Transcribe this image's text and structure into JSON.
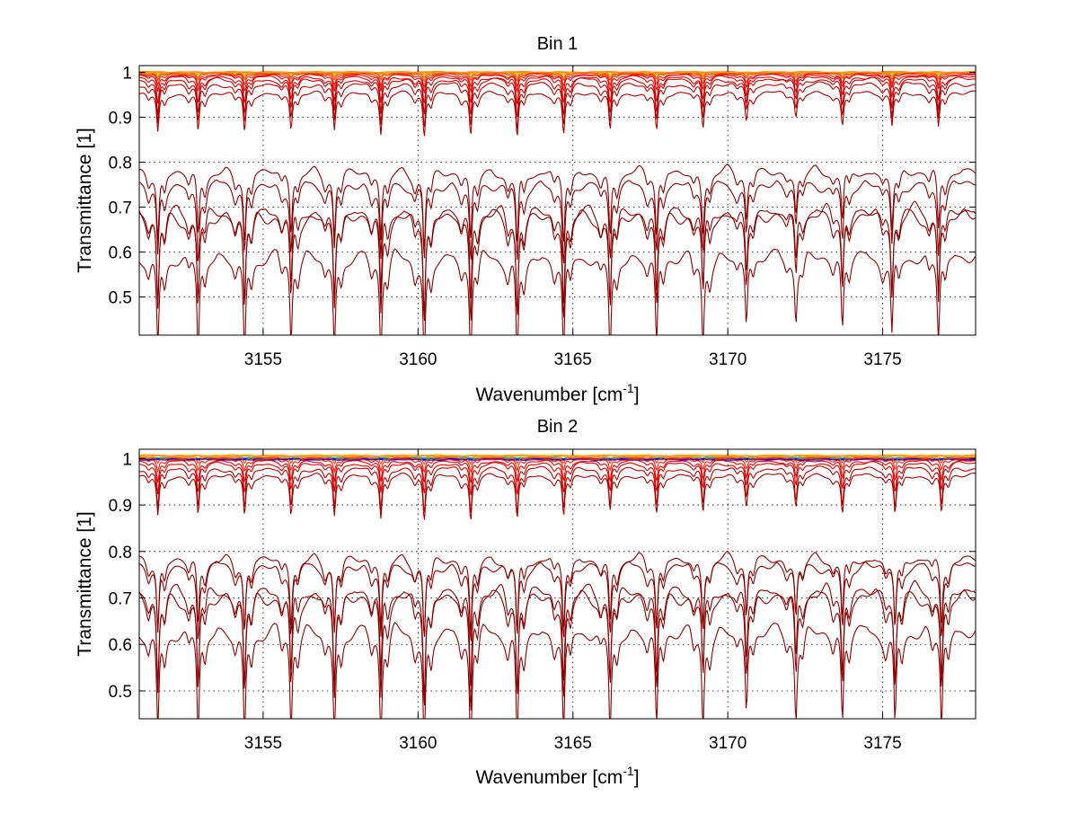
{
  "figure": {
    "background": "#ffffff"
  },
  "chart_data": [
    {
      "type": "line",
      "title": "Bin 1",
      "xlabel": "Wavenumber [cm",
      "xlabel_sup": "-1",
      "xlabel_end": "]",
      "ylabel": "Transmittance [1]",
      "xlim": [
        3151,
        3178
      ],
      "ylim": [
        0.415,
        1.015
      ],
      "xticks": [
        3155,
        3160,
        3165,
        3170,
        3175
      ],
      "xtick_labels": [
        "3155",
        "3160",
        "3165",
        "3170",
        "3175"
      ],
      "yticks": [
        0.5,
        0.6,
        0.7,
        0.8,
        0.9,
        1
      ],
      "ytick_labels": [
        "0.5",
        "0.6",
        "0.7",
        "0.8",
        "0.9",
        "1"
      ],
      "grid": true,
      "line_positions": [
        3151.6,
        3152.9,
        3154.4,
        3155.9,
        3157.3,
        3158.8,
        3160.2,
        3161.7,
        3163.2,
        3164.7,
        3166.2,
        3167.7,
        3169.2,
        3170.6,
        3172.2,
        3173.7,
        3175.3,
        3176.8
      ],
      "line_strengths": [
        0.9,
        0.9,
        0.9,
        0.8,
        0.85,
        0.9,
        1.0,
        0.95,
        1.0,
        0.95,
        0.9,
        0.85,
        0.8,
        0.65,
        0.55,
        0.7,
        0.75,
        0.8
      ],
      "series": [
        {
          "baseline": 1.0,
          "depth": 0.0,
          "color": "#ff8c00"
        },
        {
          "baseline": 1.0,
          "depth": 0.004,
          "color": "#ffa500"
        },
        {
          "baseline": 0.999,
          "depth": 0.008,
          "color": "#ff7f00"
        },
        {
          "baseline": 0.998,
          "depth": 0.012,
          "color": "#ff4500"
        },
        {
          "baseline": 0.996,
          "depth": 0.02,
          "color": "#ff2000"
        },
        {
          "baseline": 0.994,
          "depth": 0.028,
          "color": "#ee0000"
        },
        {
          "baseline": 0.99,
          "depth": 0.045,
          "color": "#dd0000"
        },
        {
          "baseline": 0.985,
          "depth": 0.06,
          "color": "#cc0000"
        },
        {
          "baseline": 0.975,
          "depth": 0.07,
          "color": "#bb0000"
        },
        {
          "baseline": 0.955,
          "depth": 0.07,
          "color": "#aa0000"
        },
        {
          "baseline": 0.79,
          "depth": 0.12,
          "color": "#8b0000"
        },
        {
          "baseline": 0.762,
          "depth": 0.13,
          "color": "#8b0000"
        },
        {
          "baseline": 0.705,
          "depth": 0.16,
          "color": "#8b0000"
        },
        {
          "baseline": 0.698,
          "depth": 0.17,
          "color": "#8b0000"
        },
        {
          "baseline": 0.605,
          "depth": 0.17,
          "color": "#8b0000"
        }
      ]
    },
    {
      "type": "line",
      "title": "Bin 2",
      "xlabel": "Wavenumber [cm",
      "xlabel_sup": "-1",
      "xlabel_end": "]",
      "ylabel": "Transmittance [1]",
      "xlim": [
        3151,
        3178
      ],
      "ylim": [
        0.44,
        1.02
      ],
      "xticks": [
        3155,
        3160,
        3165,
        3170,
        3175
      ],
      "xtick_labels": [
        "3155",
        "3160",
        "3165",
        "3170",
        "3175"
      ],
      "yticks": [
        0.5,
        0.6,
        0.7,
        0.8,
        0.9,
        1
      ],
      "ytick_labels": [
        "0.5",
        "0.6",
        "0.7",
        "0.8",
        "0.9",
        "1"
      ],
      "grid": true,
      "line_positions": [
        3151.6,
        3152.9,
        3154.4,
        3155.9,
        3157.3,
        3158.8,
        3160.2,
        3161.7,
        3163.2,
        3164.7,
        3166.2,
        3167.7,
        3169.2,
        3170.6,
        3172.2,
        3173.7,
        3175.4,
        3176.9
      ],
      "line_strengths": [
        0.9,
        0.9,
        0.9,
        0.85,
        0.9,
        0.9,
        1.0,
        1.0,
        0.95,
        0.9,
        0.85,
        0.85,
        0.8,
        0.7,
        0.7,
        0.8,
        0.85,
        0.85
      ],
      "series": [
        {
          "baseline": 1.006,
          "depth": 0.0,
          "color": "#ffa500"
        },
        {
          "baseline": 1.004,
          "depth": 0.004,
          "color": "#ff8c00"
        },
        {
          "baseline": 1.0,
          "depth": 0.0,
          "color": "#00bfbf"
        },
        {
          "baseline": 0.998,
          "depth": 0.0,
          "color": "#0000ff"
        },
        {
          "baseline": 1.002,
          "depth": 0.01,
          "color": "#ff4500"
        },
        {
          "baseline": 0.999,
          "depth": 0.02,
          "color": "#ff2000"
        },
        {
          "baseline": 0.995,
          "depth": 0.035,
          "color": "#ee0000"
        },
        {
          "baseline": 0.99,
          "depth": 0.05,
          "color": "#dd0000"
        },
        {
          "baseline": 0.98,
          "depth": 0.07,
          "color": "#bb0000"
        },
        {
          "baseline": 0.965,
          "depth": 0.07,
          "color": "#aa0000"
        },
        {
          "baseline": 0.795,
          "depth": 0.12,
          "color": "#8b0000"
        },
        {
          "baseline": 0.78,
          "depth": 0.12,
          "color": "#8b0000"
        },
        {
          "baseline": 0.73,
          "depth": 0.16,
          "color": "#8b0000"
        },
        {
          "baseline": 0.72,
          "depth": 0.17,
          "color": "#8b0000"
        },
        {
          "baseline": 0.645,
          "depth": 0.18,
          "color": "#8b0000"
        }
      ]
    }
  ]
}
